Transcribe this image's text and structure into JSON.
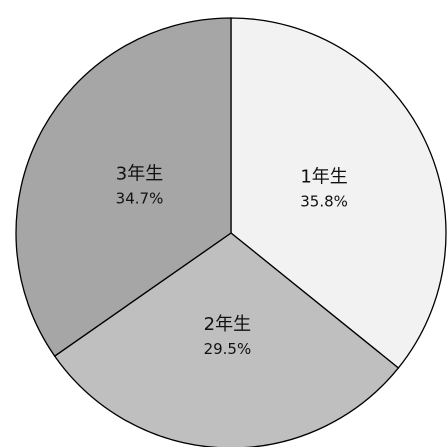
{
  "chart_data": {
    "type": "pie",
    "title": "",
    "start_angle_deg": 0,
    "direction": "clockwise",
    "slices": [
      {
        "label": "1年生",
        "value": 35.8,
        "value_label": "35.8%",
        "color": "#f2f2f2"
      },
      {
        "label": "2年生",
        "value": 29.5,
        "value_label": "29.5%",
        "color": "#bfbfbf"
      },
      {
        "label": "3年生",
        "value": 34.7,
        "value_label": "34.7%",
        "color": "#a6a6a6"
      }
    ],
    "legend": "none"
  }
}
